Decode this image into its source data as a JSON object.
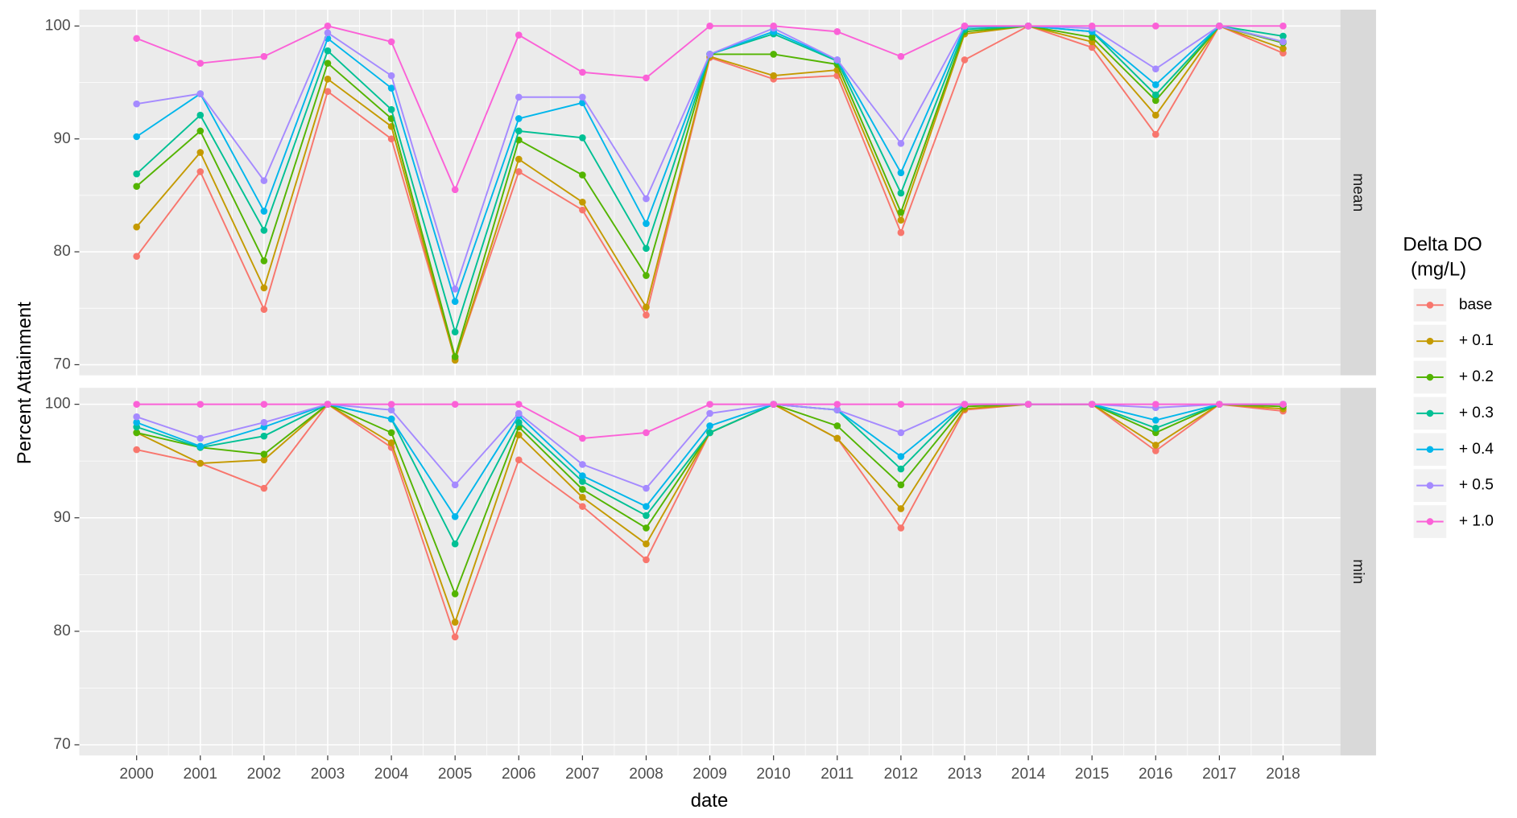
{
  "shared": {
    "ylabel": "Percent Attainment",
    "xlabel": "date",
    "legend_title": [
      "Delta DO",
      "(mg/L)"
    ]
  },
  "chart_data": [
    {
      "type": "line",
      "facet": "mean",
      "x": [
        2000,
        2001,
        2002,
        2003,
        2004,
        2005,
        2006,
        2007,
        2008,
        2009,
        2010,
        2011,
        2012,
        2013,
        2014,
        2015,
        2016,
        2017,
        2018
      ],
      "xlim": [
        1999.1,
        2018.9
      ],
      "xticks": [
        2000,
        2001,
        2002,
        2003,
        2004,
        2005,
        2006,
        2007,
        2008,
        2009,
        2010,
        2011,
        2012,
        2013,
        2014,
        2015,
        2016,
        2017,
        2018
      ],
      "ylim": [
        69.06,
        101.45
      ],
      "yticks": [
        70,
        80,
        90,
        100
      ],
      "grid": true,
      "series": [
        {
          "name": "base",
          "color": "#F8766D",
          "values": [
            79.6,
            87.1,
            74.9,
            94.2,
            90.0,
            70.5,
            87.1,
            83.7,
            74.4,
            97.2,
            95.3,
            95.6,
            81.7,
            97.0,
            100,
            98.1,
            90.4,
            100,
            97.6
          ]
        },
        {
          "name": "+ 0.1",
          "color": "#C49A00",
          "values": [
            82.2,
            88.8,
            76.8,
            95.3,
            91.1,
            70.4,
            88.2,
            84.4,
            75.1,
            97.3,
            95.6,
            96.1,
            82.8,
            99.3,
            100,
            98.6,
            92.1,
            100,
            98.0
          ]
        },
        {
          "name": "+ 0.2",
          "color": "#53B400",
          "values": [
            85.8,
            90.7,
            79.2,
            96.7,
            91.8,
            70.7,
            89.9,
            86.8,
            77.9,
            97.5,
            97.5,
            96.6,
            83.5,
            99.5,
            100,
            99.0,
            93.4,
            100,
            98.5
          ]
        },
        {
          "name": "+ 0.3",
          "color": "#00C094",
          "values": [
            86.9,
            92.1,
            81.9,
            97.8,
            92.6,
            72.9,
            90.7,
            90.1,
            80.3,
            97.5,
            99.3,
            96.9,
            85.2,
            99.7,
            100,
            99.5,
            93.9,
            100,
            99.1
          ]
        },
        {
          "name": "+ 0.4",
          "color": "#00B6EB",
          "values": [
            90.2,
            94.0,
            83.6,
            98.9,
            94.5,
            75.6,
            91.8,
            93.2,
            82.5,
            97.5,
            99.5,
            97.0,
            87.0,
            99.9,
            100,
            99.5,
            94.8,
            100,
            98.6
          ]
        },
        {
          "name": "+ 0.5",
          "color": "#A58AFF",
          "values": [
            93.1,
            94.0,
            86.3,
            99.4,
            95.6,
            76.7,
            93.7,
            93.7,
            84.7,
            97.5,
            99.8,
            97.0,
            89.6,
            100,
            100,
            99.8,
            96.2,
            100,
            98.6
          ]
        },
        {
          "name": "+ 1.0",
          "color": "#FB61D7",
          "values": [
            98.9,
            96.7,
            97.3,
            100,
            98.6,
            85.5,
            99.2,
            95.9,
            95.4,
            100,
            100,
            99.5,
            97.3,
            100,
            100,
            100,
            100,
            100,
            100
          ]
        }
      ]
    },
    {
      "type": "line",
      "facet": "min",
      "x": [
        2000,
        2001,
        2002,
        2003,
        2004,
        2005,
        2006,
        2007,
        2008,
        2009,
        2010,
        2011,
        2012,
        2013,
        2014,
        2015,
        2016,
        2017,
        2018
      ],
      "xlim": [
        1999.1,
        2018.9
      ],
      "xticks": [
        2000,
        2001,
        2002,
        2003,
        2004,
        2005,
        2006,
        2007,
        2008,
        2009,
        2010,
        2011,
        2012,
        2013,
        2014,
        2015,
        2016,
        2017,
        2018
      ],
      "ylim": [
        69.06,
        101.45
      ],
      "yticks": [
        70,
        80,
        90,
        100
      ],
      "grid": true,
      "series": [
        {
          "name": "base",
          "color": "#F8766D",
          "values": [
            96.0,
            94.8,
            92.6,
            100,
            96.2,
            79.5,
            95.1,
            91.0,
            86.3,
            97.5,
            100,
            97.0,
            89.1,
            99.5,
            100,
            100,
            95.9,
            100,
            99.4
          ]
        },
        {
          "name": "+ 0.1",
          "color": "#C49A00",
          "values": [
            97.5,
            94.8,
            95.1,
            100,
            96.6,
            80.8,
            97.3,
            91.8,
            87.7,
            97.5,
            100,
            97.0,
            90.8,
            99.6,
            100,
            100,
            96.4,
            100,
            99.6
          ]
        },
        {
          "name": "+ 0.2",
          "color": "#53B400",
          "values": [
            97.5,
            96.2,
            95.6,
            100,
            97.5,
            83.3,
            98.0,
            92.5,
            89.1,
            97.5,
            100,
            98.1,
            92.9,
            99.8,
            100,
            100,
            97.5,
            100,
            99.8
          ]
        },
        {
          "name": "+ 0.3",
          "color": "#00C094",
          "values": [
            98.0,
            96.2,
            97.2,
            100,
            98.7,
            87.7,
            98.4,
            93.2,
            90.2,
            97.5,
            100,
            99.5,
            94.3,
            100,
            100,
            100,
            97.9,
            100,
            100
          ]
        },
        {
          "name": "+ 0.4",
          "color": "#00B6EB",
          "values": [
            98.4,
            96.3,
            98.0,
            100,
            98.7,
            90.1,
            99.0,
            93.7,
            91.0,
            98.1,
            100,
            99.5,
            95.4,
            100,
            100,
            100,
            98.6,
            100,
            100
          ]
        },
        {
          "name": "+ 0.5",
          "color": "#A58AFF",
          "values": [
            98.9,
            97.0,
            98.4,
            100,
            99.5,
            92.9,
            99.2,
            94.7,
            92.6,
            99.2,
            100,
            99.5,
            97.5,
            100,
            100,
            100,
            99.7,
            100,
            100
          ]
        },
        {
          "name": "+ 1.0",
          "color": "#FB61D7",
          "values": [
            100,
            100,
            100,
            100,
            100,
            100,
            100,
            97.0,
            97.5,
            100,
            100,
            100,
            100,
            100,
            100,
            100,
            100,
            100,
            100
          ]
        }
      ]
    }
  ]
}
